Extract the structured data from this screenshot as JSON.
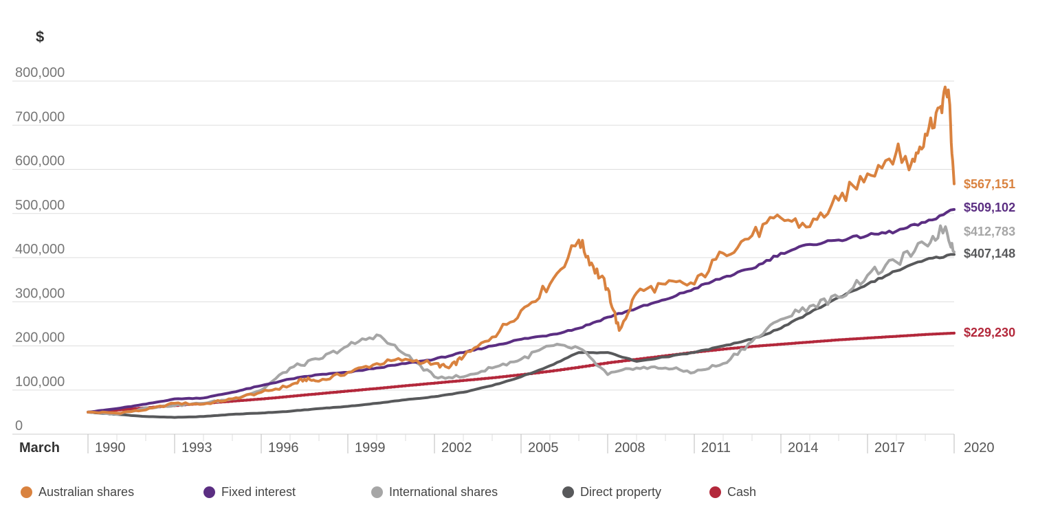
{
  "chart_data": {
    "type": "line",
    "y_unit_label": "$",
    "x_category_label": "March",
    "ylim": [
      0,
      800000
    ],
    "yticks": [
      0,
      100000,
      200000,
      300000,
      400000,
      500000,
      600000,
      700000,
      800000
    ],
    "ytick_labels": [
      "0",
      "100,000",
      "200,000",
      "300,000",
      "400,000",
      "500,000",
      "600,000",
      "700,000",
      "800,000"
    ],
    "xlim": [
      1990,
      2020
    ],
    "xtick_labels": [
      "1990",
      "1993",
      "1996",
      "1999",
      "2002",
      "2005",
      "2008",
      "2011",
      "2014",
      "2017",
      "2020"
    ],
    "grid": "horizontal",
    "legend_position": "bottom",
    "series": [
      {
        "name": "Australian shares",
        "color": "#D9823F",
        "end_label": "$567,151",
        "x": [
          1990,
          1991,
          1992,
          1993,
          1994,
          1995,
          1996,
          1997,
          1997.5,
          1998,
          1999,
          2000,
          2001,
          2002,
          2002.5,
          2003,
          2004,
          2005,
          2006,
          2007,
          2007.5,
          2008,
          2008.4,
          2009,
          2010,
          2011,
          2012,
          2013,
          2014,
          2015,
          2016,
          2017,
          2018,
          2018.5,
          2019,
          2019.5,
          2019.8,
          2020
        ],
        "values": [
          50000,
          48000,
          55000,
          70000,
          68000,
          80000,
          95000,
          110000,
          125000,
          120000,
          140000,
          160000,
          170000,
          160000,
          150000,
          175000,
          220000,
          280000,
          340000,
          440000,
          380000,
          330000,
          235000,
          320000,
          340000,
          340000,
          410000,
          450000,
          490000,
          470000,
          530000,
          590000,
          640000,
          610000,
          680000,
          740000,
          780000,
          567151
        ]
      },
      {
        "name": "Fixed interest",
        "color": "#5B2E82",
        "end_label": "$509,102",
        "x": [
          1990,
          1991,
          1992,
          1993,
          1994,
          1995,
          1996,
          1997,
          1998,
          1999,
          2000,
          2001,
          2002,
          2003,
          2004,
          2005,
          2006,
          2007,
          2008,
          2009,
          2010,
          2011,
          2012,
          2013,
          2014,
          2015,
          2016,
          2017,
          2018,
          2019,
          2020
        ],
        "values": [
          50000,
          58000,
          68000,
          80000,
          82000,
          95000,
          110000,
          125000,
          135000,
          140000,
          150000,
          160000,
          170000,
          185000,
          200000,
          215000,
          225000,
          240000,
          265000,
          285000,
          305000,
          330000,
          355000,
          375000,
          410000,
          430000,
          440000,
          450000,
          460000,
          480000,
          509102
        ]
      },
      {
        "name": "International shares",
        "color": "#A6A6A6",
        "end_label": "$412,783",
        "x": [
          1990,
          1991,
          1992,
          1993,
          1994,
          1995,
          1996,
          1997,
          1998,
          1999,
          2000,
          2001,
          2002,
          2003,
          2004,
          2005,
          2006,
          2007,
          2008,
          2009,
          2010,
          2011,
          2012,
          2013,
          2014,
          2015,
          2016,
          2017,
          2018,
          2019,
          2019.7,
          2020
        ],
        "values": [
          50000,
          45000,
          60000,
          65000,
          70000,
          80000,
          100000,
          150000,
          170000,
          200000,
          225000,
          180000,
          130000,
          130000,
          150000,
          170000,
          200000,
          195000,
          135000,
          150000,
          150000,
          140000,
          160000,
          210000,
          260000,
          290000,
          310000,
          360000,
          390000,
          430000,
          470000,
          412783
        ]
      },
      {
        "name": "Direct property",
        "color": "#58595B",
        "end_label": "$407,148",
        "x": [
          1990,
          1991,
          1992,
          1993,
          1994,
          1995,
          1996,
          1997,
          1998,
          1999,
          2000,
          2001,
          2002,
          2003,
          2004,
          2005,
          2006,
          2007,
          2008,
          2009,
          2010,
          2011,
          2012,
          2013,
          2014,
          2015,
          2016,
          2017,
          2018,
          2019,
          2020
        ],
        "values": [
          50000,
          45000,
          40000,
          38000,
          40000,
          45000,
          48000,
          52000,
          58000,
          63000,
          70000,
          78000,
          85000,
          95000,
          110000,
          130000,
          155000,
          185000,
          185000,
          165000,
          175000,
          185000,
          200000,
          215000,
          240000,
          275000,
          310000,
          340000,
          370000,
          395000,
          407148
        ]
      },
      {
        "name": "Cash",
        "color": "#B3283B",
        "end_label": "$229,230",
        "x": [
          1990,
          1991,
          1992,
          1993,
          1994,
          1995,
          1996,
          1997,
          1998,
          1999,
          2000,
          2001,
          2002,
          2003,
          2004,
          2005,
          2006,
          2007,
          2008,
          2009,
          2010,
          2011,
          2012,
          2013,
          2014,
          2015,
          2016,
          2017,
          2018,
          2019,
          2020
        ],
        "values": [
          50000,
          55000,
          60000,
          65000,
          70000,
          75000,
          80000,
          86000,
          92000,
          98000,
          104000,
          110000,
          116000,
          122000,
          128000,
          135000,
          143000,
          152000,
          162000,
          170000,
          178000,
          186000,
          193000,
          199000,
          204000,
          209000,
          214000,
          218000,
          222000,
          226000,
          229230
        ]
      }
    ]
  }
}
